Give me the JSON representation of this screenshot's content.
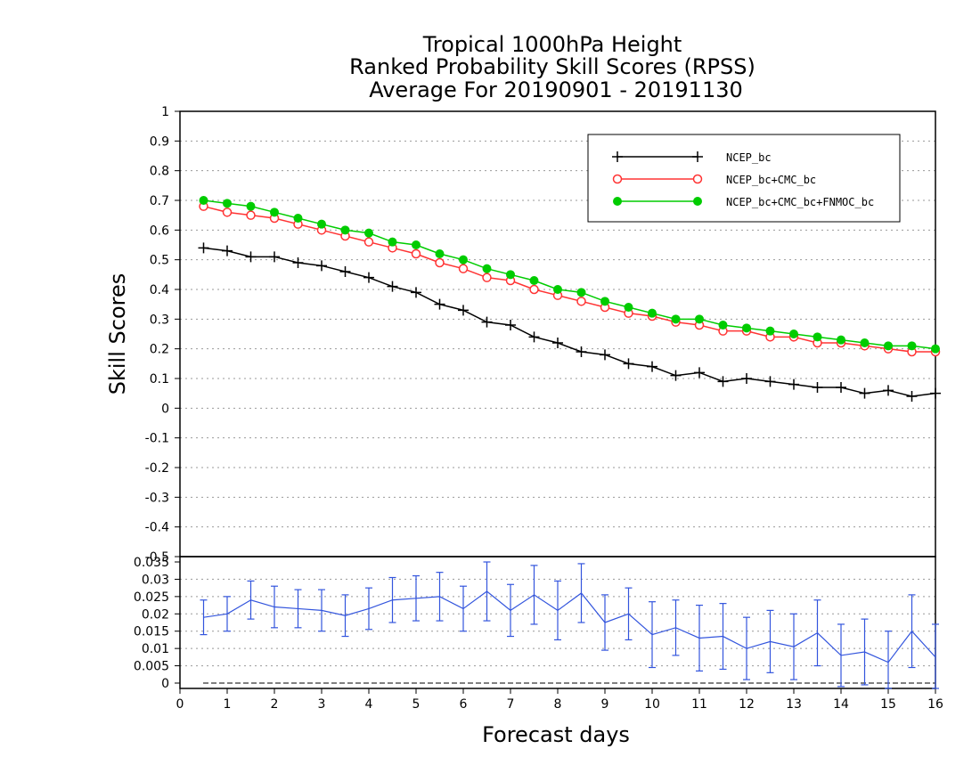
{
  "chart_data": [
    {
      "type": "line",
      "title": [
        "Tropical 1000hPa Height",
        "Ranked Probability Skill Scores (RPSS)",
        "Average For 20190901 - 20191130"
      ],
      "ylabel": "Skill Scores",
      "ylim": [
        -0.5,
        1.0
      ],
      "yticks": [
        "1",
        "0.9",
        "0.8",
        "0.7",
        "0.6",
        "0.5",
        "0.4",
        "0.3",
        "0.2",
        "0.1",
        "0",
        "-0.1",
        "-0.2",
        "-0.3",
        "-0.4",
        "-0.5"
      ],
      "xlim": [
        0,
        16
      ],
      "grid": true,
      "legend_position": "top-right",
      "x": [
        0.5,
        1,
        1.5,
        2,
        2.5,
        3,
        3.5,
        4,
        4.5,
        5,
        5.5,
        6,
        6.5,
        7,
        7.5,
        8,
        8.5,
        9,
        9.5,
        10,
        10.5,
        11,
        11.5,
        12,
        12.5,
        13,
        13.5,
        14,
        14.5,
        15,
        15.5,
        16
      ],
      "series": [
        {
          "name": "NCEP_bc",
          "color": "#000000",
          "marker": "plus",
          "values": [
            0.54,
            0.53,
            0.51,
            0.51,
            0.49,
            0.48,
            0.46,
            0.44,
            0.41,
            0.39,
            0.35,
            0.33,
            0.29,
            0.28,
            0.24,
            0.22,
            0.19,
            0.18,
            0.15,
            0.14,
            0.11,
            0.12,
            0.09,
            0.1,
            0.09,
            0.08,
            0.07,
            0.07,
            0.05,
            0.06,
            0.04,
            0.05
          ]
        },
        {
          "name": "NCEP_bc+CMC_bc",
          "color": "#ff3333",
          "marker": "open-circle",
          "values": [
            0.68,
            0.66,
            0.65,
            0.64,
            0.62,
            0.6,
            0.58,
            0.56,
            0.54,
            0.52,
            0.49,
            0.47,
            0.44,
            0.43,
            0.4,
            0.38,
            0.36,
            0.34,
            0.32,
            0.31,
            0.29,
            0.28,
            0.26,
            0.26,
            0.24,
            0.24,
            0.22,
            0.22,
            0.21,
            0.2,
            0.19,
            0.19
          ]
        },
        {
          "name": "NCEP_bc+CMC_bc+FNMOC_bc",
          "color": "#00cc00",
          "marker": "filled-circle",
          "values": [
            0.7,
            0.69,
            0.68,
            0.66,
            0.64,
            0.62,
            0.6,
            0.59,
            0.56,
            0.55,
            0.52,
            0.5,
            0.47,
            0.45,
            0.43,
            0.4,
            0.39,
            0.36,
            0.34,
            0.32,
            0.3,
            0.3,
            0.28,
            0.27,
            0.26,
            0.25,
            0.24,
            0.23,
            0.22,
            0.21,
            0.21,
            0.2
          ]
        }
      ]
    },
    {
      "type": "line",
      "xlabel": "Forecast days",
      "xticks": [
        "0",
        "1",
        "2",
        "3",
        "4",
        "5",
        "6",
        "7",
        "8",
        "9",
        "10",
        "11",
        "12",
        "13",
        "14",
        "15",
        "16"
      ],
      "ylim": [
        0,
        0.035
      ],
      "yticks": [
        "0.035",
        "0.03",
        "0.025",
        "0.02",
        "0.015",
        "0.01",
        "0.005",
        "0"
      ],
      "grid": true,
      "x": [
        0.5,
        1,
        1.5,
        2,
        2.5,
        3,
        3.5,
        4,
        4.5,
        5,
        5.5,
        6,
        6.5,
        7,
        7.5,
        8,
        8.5,
        9,
        9.5,
        10,
        10.5,
        11,
        11.5,
        12,
        12.5,
        13,
        13.5,
        14,
        14.5,
        15,
        15.5,
        16
      ],
      "series": [
        {
          "color": "#3355dd",
          "values": [
            0.019,
            0.02,
            0.024,
            0.022,
            0.0215,
            0.021,
            0.0195,
            0.0215,
            0.024,
            0.0245,
            0.025,
            0.0215,
            0.0265,
            0.021,
            0.0255,
            0.021,
            0.026,
            0.0175,
            0.02,
            0.014,
            0.016,
            0.013,
            0.0135,
            0.01,
            0.012,
            0.0105,
            0.0145,
            0.008,
            0.009,
            0.006,
            0.015,
            0.0075
          ],
          "errors": [
            0.005,
            0.005,
            0.0055,
            0.006,
            0.0055,
            0.006,
            0.006,
            0.006,
            0.0065,
            0.0065,
            0.007,
            0.0065,
            0.0085,
            0.0075,
            0.0085,
            0.0085,
            0.0085,
            0.008,
            0.0075,
            0.0095,
            0.008,
            0.0095,
            0.0095,
            0.009,
            0.009,
            0.0095,
            0.0095,
            0.009,
            0.0095,
            0.009,
            0.0105,
            0.0095
          ]
        }
      ]
    }
  ]
}
